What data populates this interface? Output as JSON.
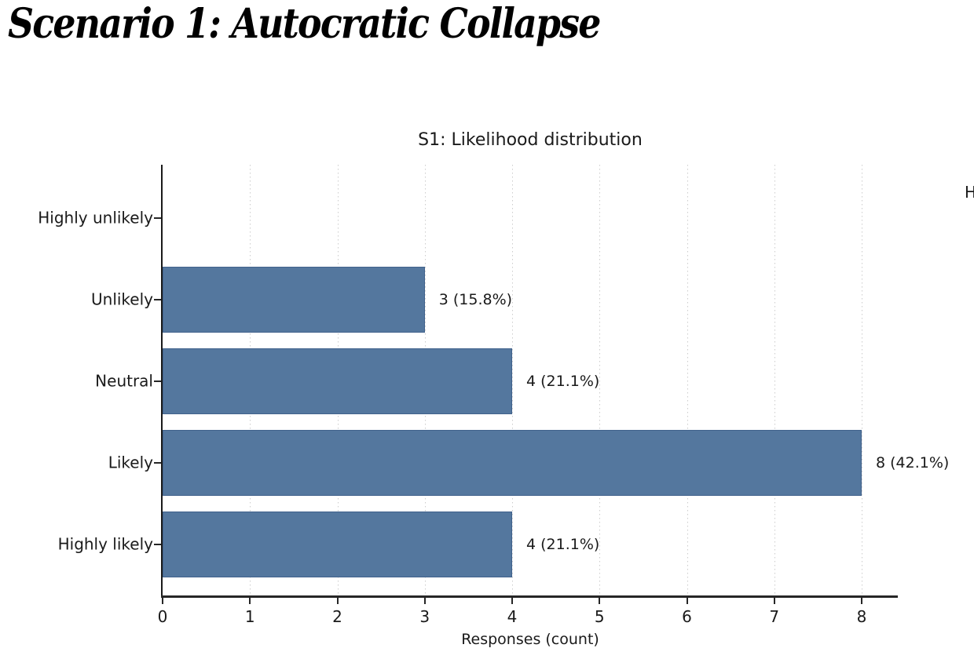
{
  "page": {
    "heading": "Scenario 1: Autocratic Collapse",
    "clipped_text_right_edge": "H"
  },
  "colors": {
    "bar": "#54779e",
    "bar_edge": "#41628c",
    "axis": "#262626",
    "grid": "#cccccc",
    "text": "#1a1a1a"
  },
  "chart_data": {
    "type": "bar",
    "orientation": "horizontal",
    "title": "S1: Likelihood distribution",
    "xlabel": "Responses (count)",
    "ylabel": "",
    "categories": [
      "Highly unlikely",
      "Unlikely",
      "Neutral",
      "Likely",
      "Highly likely"
    ],
    "values": [
      0,
      3,
      4,
      8,
      4
    ],
    "bar_labels": [
      "",
      "3 (15.8%)",
      "4 (21.1%)",
      "8 (42.1%)",
      "4 (21.1%)"
    ],
    "x_ticks": [
      0,
      1,
      2,
      3,
      4,
      5,
      6,
      7,
      8
    ],
    "xlim": [
      0,
      8.4
    ],
    "grid": "vertical dotted",
    "legend": "none"
  }
}
